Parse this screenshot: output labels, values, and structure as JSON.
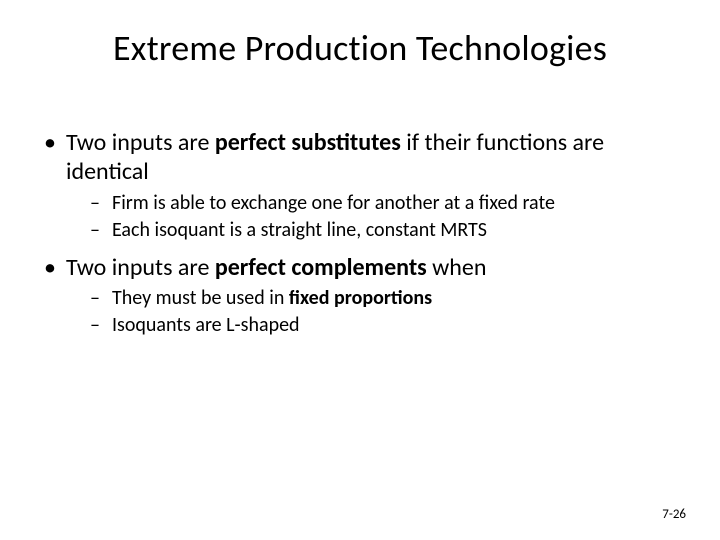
{
  "slide": {
    "title": "Extreme Production Technologies",
    "page_number": "7-26",
    "background_color": "#ffffff",
    "text_color": "#000000",
    "title_fontsize": 36,
    "body_fontsize_lvl1": 24,
    "body_fontsize_lvl2": 20,
    "bullets": [
      {
        "prefix": "Two inputs are ",
        "bold": "perfect substitutes",
        "suffix": " if their functions are identical",
        "sub": [
          {
            "prefix": "Firm is able to exchange one for another at a fixed rate",
            "bold": "",
            "suffix": ""
          },
          {
            "prefix": "Each isoquant is a straight line, constant MRTS",
            "bold": "",
            "suffix": ""
          }
        ]
      },
      {
        "prefix": "Two inputs are ",
        "bold": "perfect complements",
        "suffix": " when",
        "sub": [
          {
            "prefix": "They must be used in ",
            "bold": "fixed proportions",
            "suffix": ""
          },
          {
            "prefix": "Isoquants are L-shaped",
            "bold": "",
            "suffix": ""
          }
        ]
      }
    ]
  }
}
